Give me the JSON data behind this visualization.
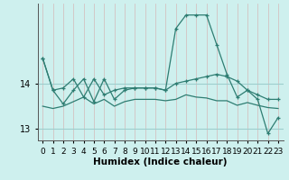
{
  "xlabel": "Humidex (Indice chaleur)",
  "background_color": "#cef0ee",
  "vgrid_color": "#d4b8b8",
  "hgrid_color": "#9ecece",
  "line_color": "#2e7d72",
  "x_values_line1": [
    0,
    1,
    2,
    3,
    4,
    5,
    6,
    7,
    8,
    9,
    10,
    11,
    12,
    13,
    14,
    15,
    16,
    17,
    18,
    19,
    20,
    21,
    22,
    23
  ],
  "y_values_line1": [
    14.55,
    13.85,
    13.9,
    14.1,
    13.7,
    14.1,
    13.75,
    13.85,
    13.9,
    13.9,
    13.9,
    13.9,
    13.85,
    14.0,
    14.05,
    14.1,
    14.15,
    14.2,
    14.15,
    14.05,
    13.85,
    13.75,
    13.65,
    13.65
  ],
  "x_values_line2": [
    0,
    1,
    2,
    3,
    4,
    5,
    6,
    7,
    8,
    9,
    10,
    11,
    12,
    13,
    14,
    15,
    16,
    17,
    18,
    19,
    20,
    21,
    22,
    23
  ],
  "y_values_line2": [
    14.55,
    13.85,
    13.55,
    13.85,
    14.1,
    13.6,
    14.1,
    13.65,
    13.85,
    13.9,
    13.9,
    13.9,
    13.85,
    15.2,
    15.5,
    15.5,
    15.5,
    14.85,
    14.2,
    13.7,
    13.85,
    13.65,
    12.9,
    13.25
  ],
  "x_values_line3": [
    0,
    1,
    2,
    3,
    4,
    5,
    6,
    7,
    8,
    9,
    10,
    11,
    12,
    13,
    14,
    15,
    16,
    17,
    18,
    19,
    20,
    21,
    22,
    23
  ],
  "y_values_line3": [
    13.5,
    13.45,
    13.5,
    13.6,
    13.7,
    13.55,
    13.65,
    13.5,
    13.6,
    13.65,
    13.65,
    13.65,
    13.62,
    13.65,
    13.75,
    13.7,
    13.68,
    13.62,
    13.62,
    13.52,
    13.58,
    13.52,
    13.47,
    13.45
  ],
  "yticks": [
    13,
    14
  ],
  "xlim": [
    -0.5,
    23.5
  ],
  "ylim": [
    12.75,
    15.75
  ],
  "xlabel_fontsize": 7.5,
  "tick_fontsize": 6.5
}
